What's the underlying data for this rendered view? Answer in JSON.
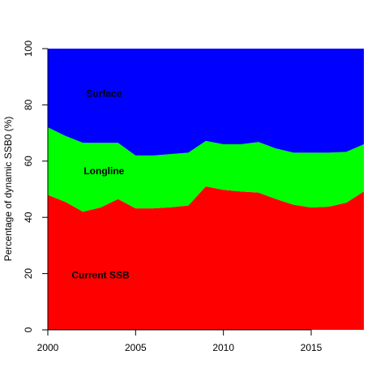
{
  "chart_data": {
    "type": "area",
    "stacked": true,
    "x": [
      2000,
      2001,
      2002,
      2003,
      2004,
      2005,
      2006,
      2007,
      2008,
      2009,
      2010,
      2011,
      2012,
      2013,
      2014,
      2015,
      2016,
      2017,
      2018
    ],
    "series": [
      {
        "name": "Current SSB",
        "color": "#ff0000",
        "upper": [
          48,
          45.5,
          42,
          43.5,
          46.5,
          43.2,
          43.2,
          43.6,
          44.2,
          51,
          49.8,
          49.2,
          48.8,
          46.5,
          44.5,
          43.5,
          43.8,
          45.2,
          49.2
        ]
      },
      {
        "name": "Longline",
        "color": "#00ff00",
        "upper": [
          72,
          69,
          66.5,
          66.5,
          66.5,
          62,
          62,
          62.5,
          63,
          67.2,
          66,
          66,
          66.8,
          64.5,
          63,
          63,
          63,
          63.3,
          66
        ]
      },
      {
        "name": "Surface",
        "color": "#0000ff",
        "upper": [
          100,
          100,
          100,
          100,
          100,
          100,
          100,
          100,
          100,
          100,
          100,
          100,
          100,
          100,
          100,
          100,
          100,
          100,
          100
        ]
      }
    ],
    "area_labels": [
      {
        "text": "Surface",
        "x": 2003.2,
        "y": 84
      },
      {
        "text": "Longline",
        "x": 2003.2,
        "y": 56.5
      },
      {
        "text": "Current SSB",
        "x": 2003.0,
        "y": 19.5
      }
    ],
    "xlim": [
      2000,
      2018
    ],
    "ylim": [
      0,
      100
    ],
    "x_ticks": [
      2000,
      2005,
      2010,
      2015
    ],
    "y_ticks": [
      0,
      20,
      40,
      60,
      80,
      100
    ],
    "ylabel": "Percentage of dynamic SSB0 (%)",
    "xlabel": "",
    "title": "",
    "grid": false
  }
}
